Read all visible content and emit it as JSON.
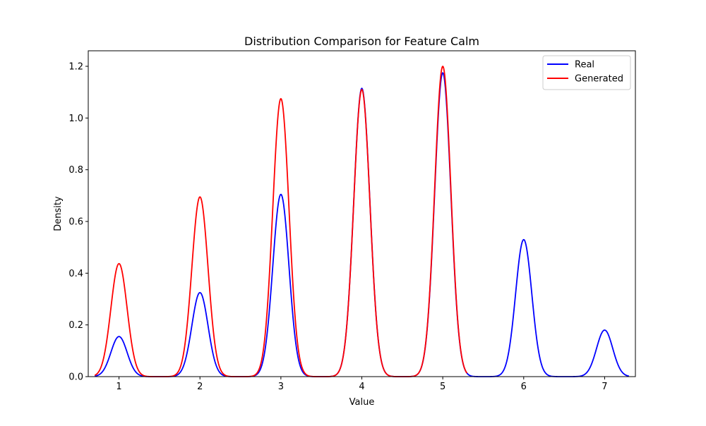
{
  "chart_data": {
    "type": "line",
    "title": "Distribution Comparison for Feature Calm",
    "xlabel": "Value",
    "ylabel": "Density",
    "xlim": [
      0.62,
      7.38
    ],
    "ylim": [
      0,
      1.26
    ],
    "xticks": [
      "1",
      "2",
      "3",
      "4",
      "5",
      "6",
      "7"
    ],
    "yticks": [
      "0.0",
      "0.2",
      "0.4",
      "0.6",
      "0.8",
      "1.0",
      "1.2"
    ],
    "grid": false,
    "legend_position": "top-right",
    "series": [
      {
        "name": "Real",
        "color": "#0000ff",
        "x_range": [
          0.7,
          7.3
        ],
        "peaks": [
          {
            "x": 1,
            "y": 0.155
          },
          {
            "x": 2,
            "y": 0.325
          },
          {
            "x": 3,
            "y": 0.705
          },
          {
            "x": 4,
            "y": 1.115
          },
          {
            "x": 5,
            "y": 1.175
          },
          {
            "x": 6,
            "y": 0.53
          },
          {
            "x": 7,
            "y": 0.18
          }
        ]
      },
      {
        "name": "Generated",
        "color": "#ff0000",
        "x_range": [
          0.7,
          5.3
        ],
        "peaks": [
          {
            "x": 1,
            "y": 0.437
          },
          {
            "x": 2,
            "y": 0.695
          },
          {
            "x": 3,
            "y": 1.075
          },
          {
            "x": 4,
            "y": 1.11
          },
          {
            "x": 5,
            "y": 1.2
          }
        ]
      }
    ]
  }
}
